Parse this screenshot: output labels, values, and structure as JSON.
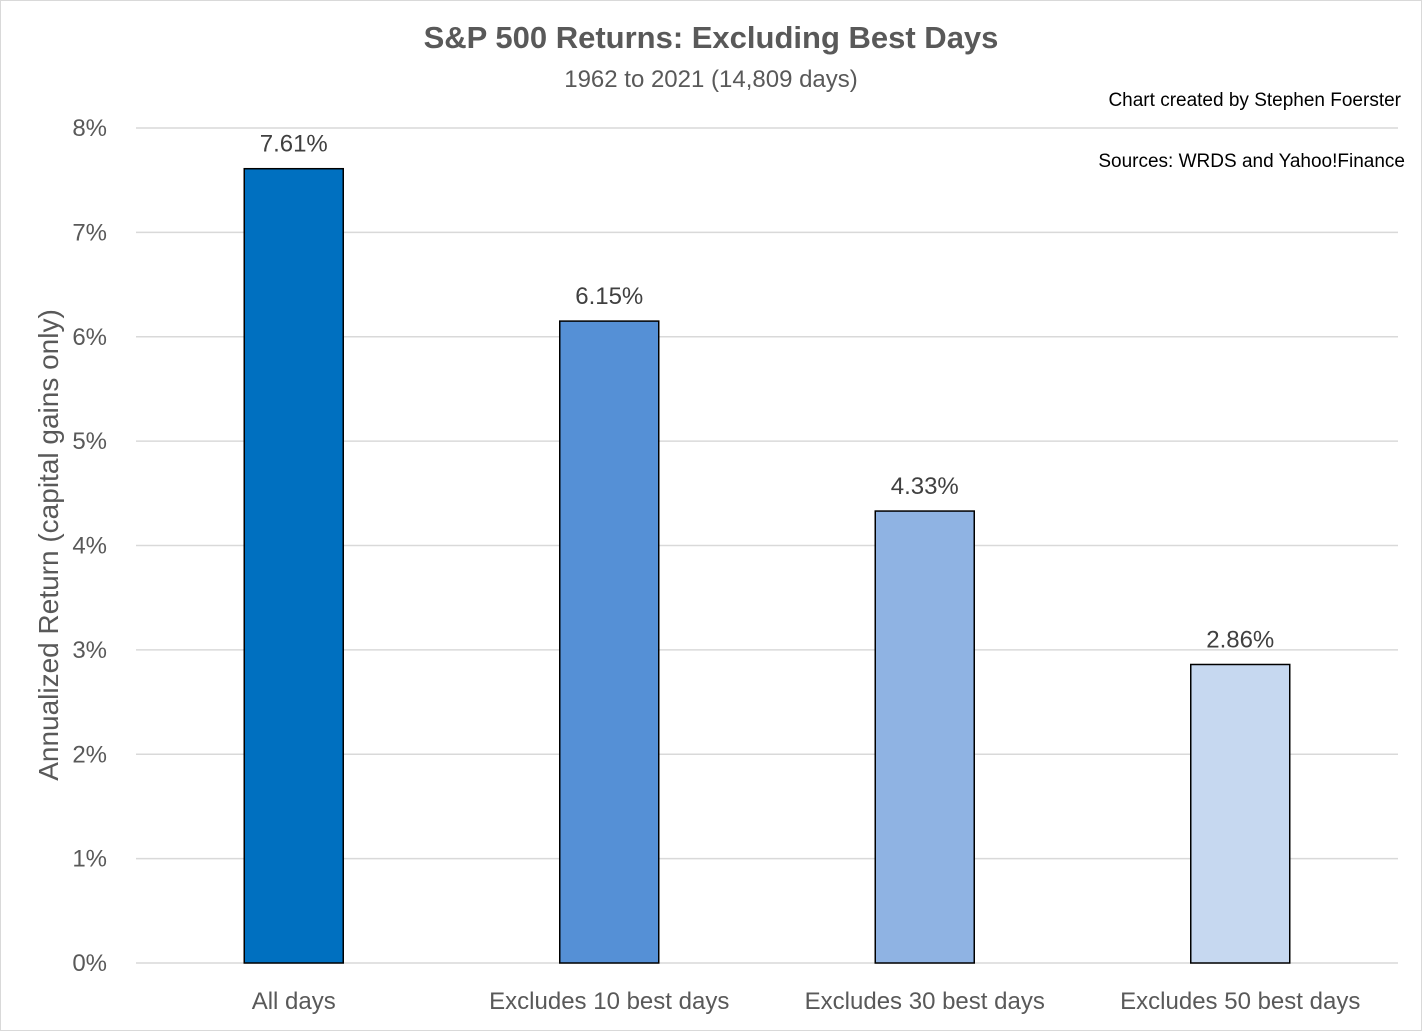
{
  "chart_data": {
    "type": "bar",
    "title": "S&P 500 Returns: Excluding Best Days",
    "subtitle": "1962 to 2021 (14,809 days)",
    "ylabel": "Annualized Return (capital gains only)",
    "xlabel": "",
    "categories": [
      "All days",
      "Excludes 10 best days",
      "Excludes 30 best days",
      "Excludes 50 best days"
    ],
    "values": [
      7.61,
      6.15,
      4.33,
      2.86
    ],
    "data_labels": [
      "7.61%",
      "6.15%",
      "4.33%",
      "2.86%"
    ],
    "bar_colors": [
      "#0070C0",
      "#5590D6",
      "#8FB3E3",
      "#C6D8F0"
    ],
    "ylim": [
      0,
      8
    ],
    "yticks": [
      0,
      1,
      2,
      3,
      4,
      5,
      6,
      7,
      8
    ],
    "ytick_labels": [
      "0%",
      "1%",
      "2%",
      "3%",
      "4%",
      "5%",
      "6%",
      "7%",
      "8%"
    ],
    "grid": true,
    "legend": "none"
  },
  "annotations": {
    "credit": "Chart created by Stephen Foerster",
    "sources": "Sources: WRDS and Yahoo!Finance"
  }
}
